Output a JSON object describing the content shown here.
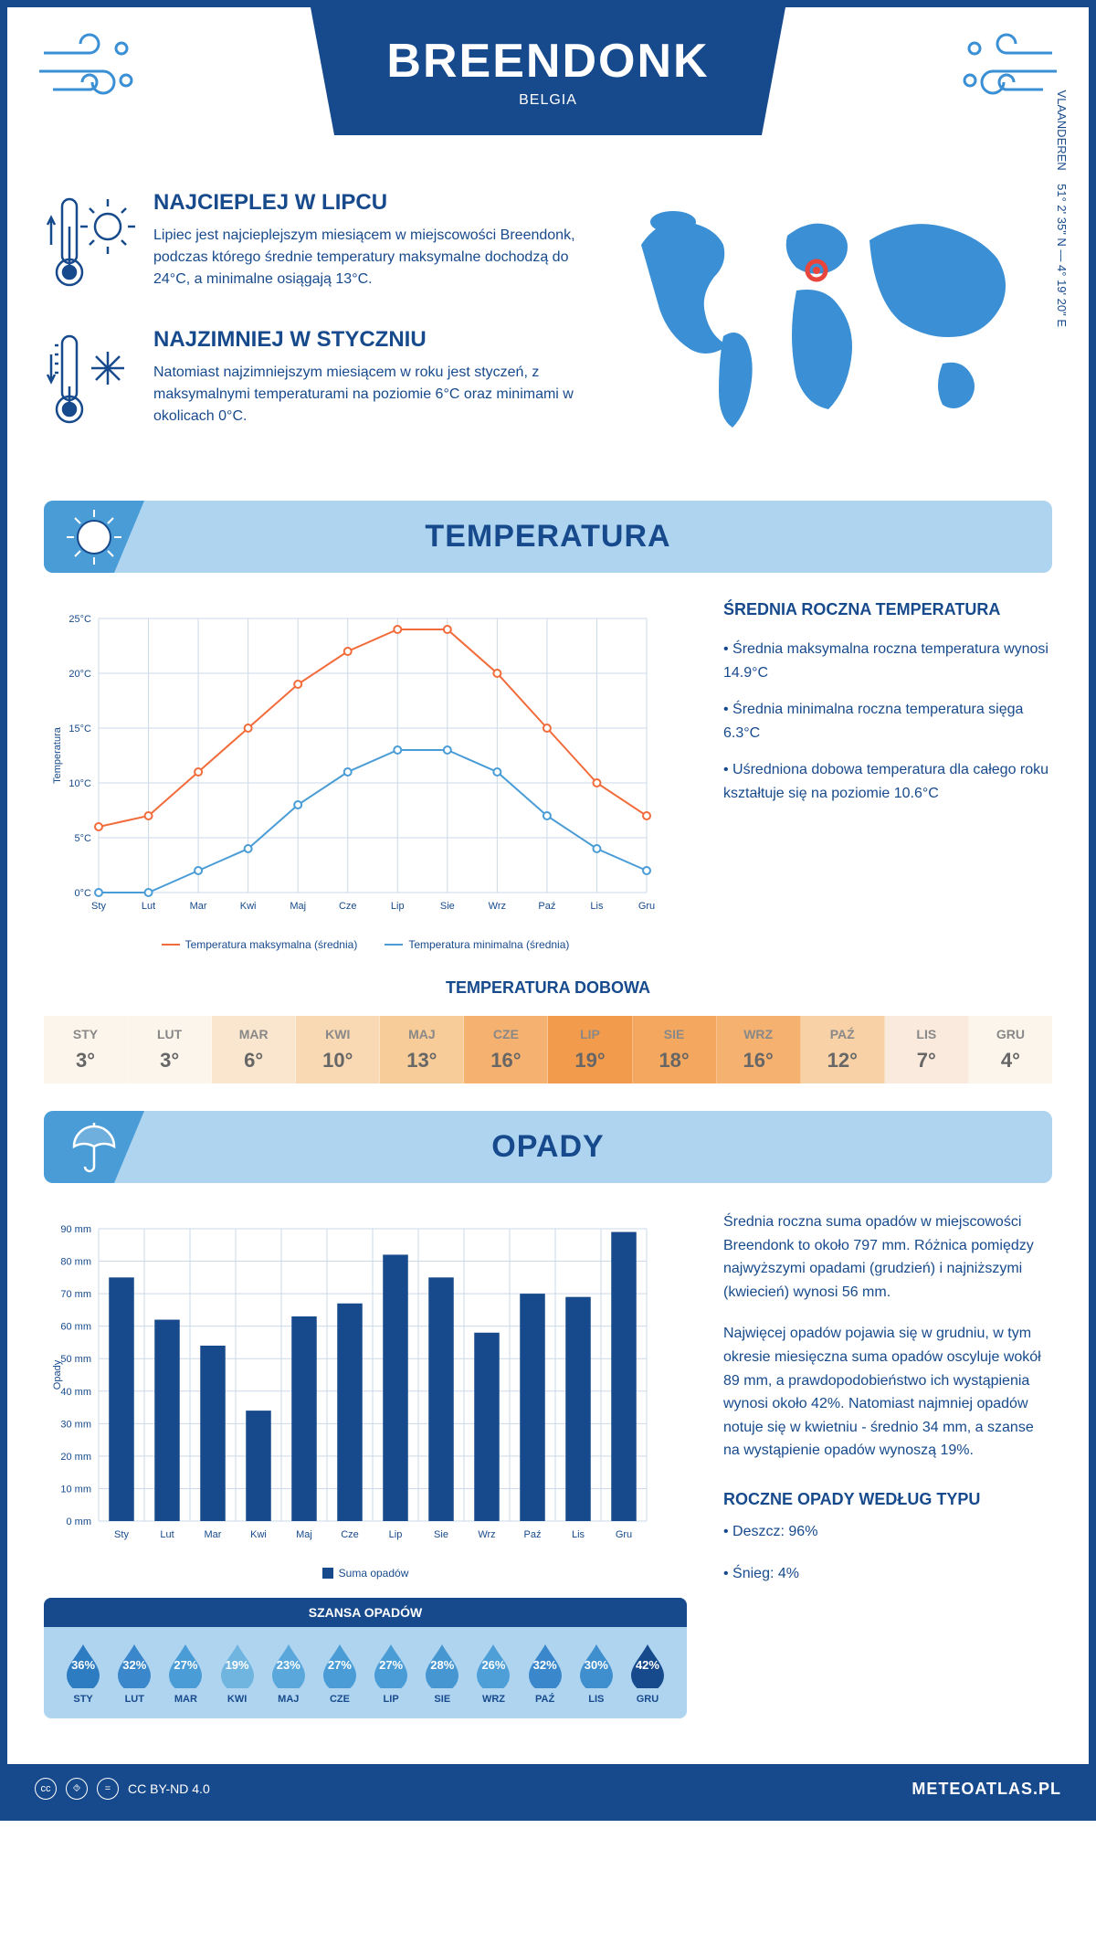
{
  "header": {
    "title": "BREENDONK",
    "country": "BELGIA"
  },
  "coords": "51° 2' 35\" N — 4° 19' 20\" E",
  "region": "VLAANDEREN",
  "intro": {
    "warm": {
      "heading": "NAJCIEPLEJ W LIPCU",
      "text": "Lipiec jest najcieplejszym miesiącem w miejscowości Breendonk, podczas którego średnie temperatury maksymalne dochodzą do 24°C, a minimalne osiągają 13°C."
    },
    "cold": {
      "heading": "NAJZIMNIEJ W STYCZNIU",
      "text": "Natomiast najzimniejszym miesiącem w roku jest styczeń, z maksymalnymi temperaturami na poziomie 6°C oraz minimami w okolicach 0°C."
    }
  },
  "sections": {
    "temperature": "TEMPERATURA",
    "precipitation": "OPADY"
  },
  "temp_chart": {
    "type": "line",
    "months": [
      "Sty",
      "Lut",
      "Mar",
      "Kwi",
      "Maj",
      "Cze",
      "Lip",
      "Sie",
      "Wrz",
      "Paź",
      "Lis",
      "Gru"
    ],
    "max_series": [
      6,
      7,
      11,
      15,
      19,
      22,
      24,
      24,
      20,
      15,
      10,
      7
    ],
    "min_series": [
      0,
      0,
      2,
      4,
      8,
      11,
      13,
      13,
      11,
      7,
      4,
      2
    ],
    "max_color": "#f26b3a",
    "min_color": "#4a9cd6",
    "grid_color": "#cdd9e8",
    "axis_color": "#174a8c",
    "y_label": "Temperatura",
    "ylim": [
      0,
      25
    ],
    "ytick_step": 5,
    "ytick_suffix": "°C",
    "legend_max": "Temperatura maksymalna (średnia)",
    "legend_min": "Temperatura minimalna (średnia)",
    "line_width": 2,
    "marker_radius": 4
  },
  "temp_info": {
    "heading": "ŚREDNIA ROCZNA TEMPERATURA",
    "b1": "• Średnia maksymalna roczna temperatura wynosi 14.9°C",
    "b2": "• Średnia minimalna roczna temperatura sięga 6.3°C",
    "b3": "• Uśredniona dobowa temperatura dla całego roku kształtuje się na poziomie 10.6°C"
  },
  "daily_temp": {
    "heading": "TEMPERATURA DOBOWA",
    "months": [
      "STY",
      "LUT",
      "MAR",
      "KWI",
      "MAJ",
      "CZE",
      "LIP",
      "SIE",
      "WRZ",
      "PAŹ",
      "LIS",
      "GRU"
    ],
    "values": [
      "3°",
      "3°",
      "6°",
      "10°",
      "13°",
      "16°",
      "19°",
      "18°",
      "16°",
      "12°",
      "7°",
      "4°"
    ],
    "colors": [
      "#fcf5ec",
      "#fcf5ec",
      "#fae6cf",
      "#f9d9b3",
      "#f7cc98",
      "#f5b170",
      "#f39b4c",
      "#f4a85f",
      "#f5b170",
      "#f8d2a6",
      "#faeadd",
      "#fcf5ec"
    ]
  },
  "precip_chart": {
    "type": "bar",
    "months": [
      "Sty",
      "Lut",
      "Mar",
      "Kwi",
      "Maj",
      "Cze",
      "Lip",
      "Sie",
      "Wrz",
      "Paź",
      "Lis",
      "Gru"
    ],
    "values": [
      75,
      62,
      54,
      34,
      63,
      67,
      82,
      75,
      58,
      70,
      69,
      89
    ],
    "bar_color": "#174a8c",
    "grid_color": "#cdd9e8",
    "axis_color": "#174a8c",
    "y_label": "Opady",
    "ylim": [
      0,
      90
    ],
    "ytick_step": 10,
    "ytick_suffix": " mm",
    "legend": "Suma opadów",
    "bar_width_ratio": 0.55
  },
  "precip_info": {
    "p1": "Średnia roczna suma opadów w miejscowości Breendonk to około 797 mm. Różnica pomiędzy najwyższymi opadami (grudzień) i najniższymi (kwiecień) wynosi 56 mm.",
    "p2": "Najwięcej opadów pojawia się w grudniu, w tym okresie miesięczna suma opadów oscyluje wokół 89 mm, a prawdopodobieństwo ich wystąpienia wynosi około 42%. Natomiast najmniej opadów notuje się w kwietniu - średnio 34 mm, a szanse na wystąpienie opadów wynoszą 19%.",
    "type_heading": "ROCZNE OPADY WEDŁUG TYPU",
    "type_rain": "• Deszcz: 96%",
    "type_snow": "• Śnieg: 4%"
  },
  "rain_chance": {
    "heading": "SZANSA OPADÓW",
    "months": [
      "STY",
      "LUT",
      "MAR",
      "KWI",
      "MAJ",
      "CZE",
      "LIP",
      "SIE",
      "WRZ",
      "PAŹ",
      "LIS",
      "GRU"
    ],
    "values": [
      "36%",
      "32%",
      "27%",
      "19%",
      "23%",
      "27%",
      "27%",
      "28%",
      "26%",
      "32%",
      "30%",
      "42%"
    ],
    "colors": [
      "#2d7bc0",
      "#3a88cb",
      "#4a9cd6",
      "#6fb5e0",
      "#5aa8db",
      "#4a9cd6",
      "#4a9cd6",
      "#4696d2",
      "#4e9fd8",
      "#3a88cb",
      "#3f8fce",
      "#174a8c"
    ]
  },
  "footer": {
    "license": "CC BY-ND 4.0",
    "site": "METEOATLAS.PL"
  },
  "colors": {
    "primary": "#174a8c",
    "accent": "#4a9cd6",
    "light": "#aed4f0",
    "marker": "#e8463c"
  }
}
